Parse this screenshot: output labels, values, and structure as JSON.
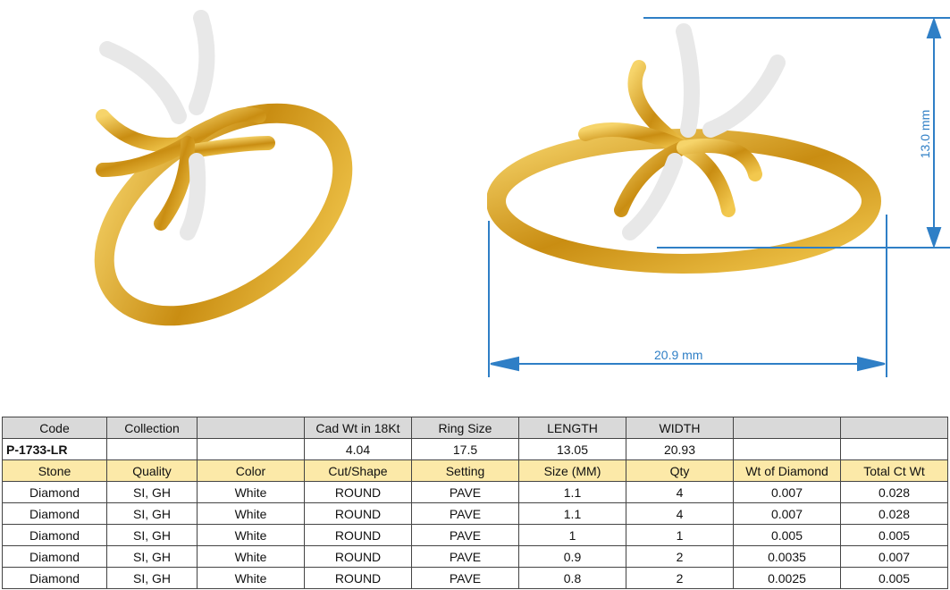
{
  "images": {
    "left_ring": "gold-flower-ring-perspective-view",
    "right_ring": "gold-flower-ring-front-view"
  },
  "dimensions": {
    "height_label": "13.0 mm",
    "width_label": "20.9 mm",
    "color": "#2f7fc6"
  },
  "spec_table": {
    "header": [
      "Code",
      "Collection",
      "",
      "Cad Wt in 18Kt",
      "Ring Size",
      "LENGTH",
      "WIDTH",
      "",
      ""
    ],
    "values": [
      "P-1733-LR",
      "",
      "",
      "4.04",
      "17.5",
      "13.05",
      "20.93",
      "",
      ""
    ]
  },
  "stone_table": {
    "header": [
      "Stone",
      "Quality",
      "Color",
      "Cut/Shape",
      "Setting",
      "Size (MM)",
      "Qty",
      "Wt of Diamond",
      "Total Ct Wt"
    ],
    "rows": [
      [
        "Diamond",
        "SI, GH",
        "White",
        "ROUND",
        "PAVE",
        "1.1",
        "4",
        "0.007",
        "0.028"
      ],
      [
        "Diamond",
        "SI, GH",
        "White",
        "ROUND",
        "PAVE",
        "1.1",
        "4",
        "0.007",
        "0.028"
      ],
      [
        "Diamond",
        "SI, GH",
        "White",
        "ROUND",
        "PAVE",
        "1",
        "1",
        "0.005",
        "0.005"
      ],
      [
        "Diamond",
        "SI, GH",
        "White",
        "ROUND",
        "PAVE",
        "0.9",
        "2",
        "0.0035",
        "0.007"
      ],
      [
        "Diamond",
        "SI, GH",
        "White",
        "ROUND",
        "PAVE",
        "0.8",
        "2",
        "0.0025",
        "0.005"
      ]
    ]
  },
  "colors": {
    "header_bg": "#d9d9d9",
    "stone_header_bg": "#fce9a8",
    "gold": "#d9a520"
  }
}
